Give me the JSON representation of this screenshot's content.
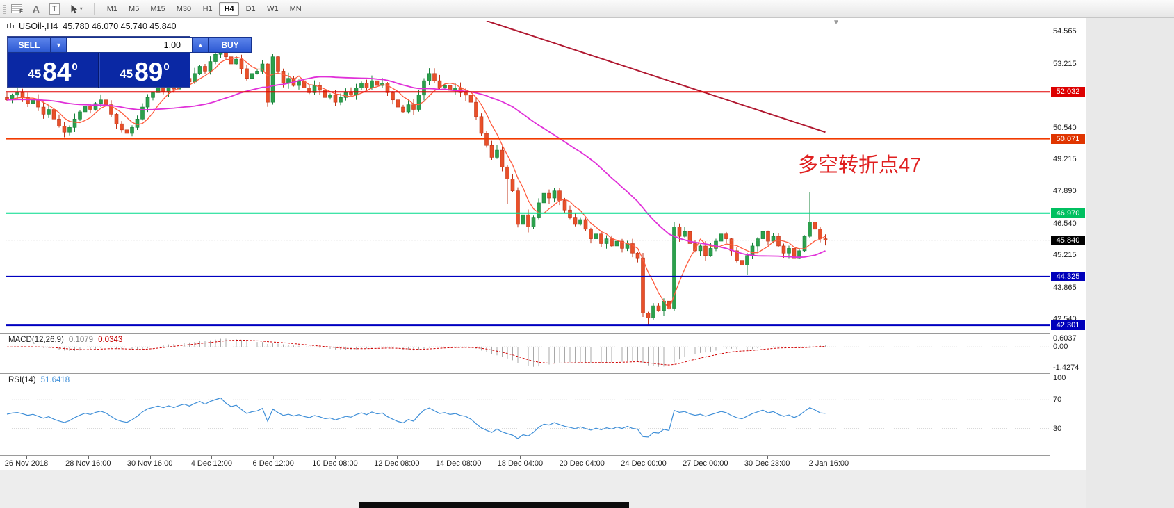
{
  "toolbar": {
    "tools": {
      "label_a": "A",
      "label_t": "T"
    },
    "timeframes": {
      "items": [
        "M1",
        "M5",
        "M15",
        "M30",
        "H1",
        "H4",
        "D1",
        "W1",
        "MN"
      ],
      "active": "H4"
    }
  },
  "chart": {
    "header": {
      "symbol": "USOil-,H4",
      "ohlc": "45.780 46.070 45.740 45.840"
    },
    "trade_panel": {
      "sell_label": "SELL",
      "buy_label": "BUY",
      "volume": "1.00",
      "sell_price": {
        "base": "45",
        "big": "84",
        "pip": "0"
      },
      "buy_price": {
        "base": "45",
        "big": "89",
        "pip": "0"
      }
    },
    "annotation": {
      "text": "多空转折点47",
      "color": "#e02020"
    },
    "current_price": {
      "label": "45.840"
    }
  },
  "price_axis": {
    "plain": [
      "54.565",
      "53.215",
      "50.540",
      "49.215",
      "47.890",
      "46.540",
      "45.215",
      "43.865",
      "42.540"
    ]
  },
  "indicators": {
    "macd": {
      "name": "MACD(12,26,9)",
      "main_value": "0.1079",
      "signal_value": "0.0343",
      "axis": [
        "0.6037",
        "0.00",
        "-1.4274"
      ],
      "fast": 12,
      "slow": 26,
      "signal": 9
    },
    "rsi": {
      "name": "RSI(14)",
      "value": "51.6418",
      "axis": [
        "100",
        "70",
        "30"
      ],
      "period": 14,
      "levels": [
        70,
        30
      ]
    }
  },
  "chart_data": {
    "type": "candlestick",
    "symbol": "USOil-",
    "timeframe": "H4",
    "price_range": [
      42.0,
      55.0
    ],
    "closes": [
      51.7,
      51.9,
      52.0,
      51.8,
      51.55,
      51.7,
      51.4,
      51.1,
      51.3,
      50.9,
      50.6,
      50.35,
      50.55,
      50.9,
      51.2,
      51.45,
      51.3,
      51.55,
      51.7,
      51.5,
      51.1,
      50.7,
      50.45,
      50.3,
      50.55,
      50.9,
      51.4,
      51.8,
      52.0,
      52.2,
      52.05,
      52.3,
      52.15,
      52.4,
      52.6,
      52.45,
      52.8,
      53.1,
      52.9,
      53.3,
      53.6,
      53.9,
      53.5,
      53.2,
      53.4,
      53.0,
      52.6,
      52.8,
      52.9,
      53.2,
      51.6,
      53.5,
      52.9,
      52.4,
      52.6,
      52.3,
      52.5,
      52.2,
      52.0,
      52.3,
      52.1,
      51.8,
      51.9,
      51.6,
      51.8,
      52.0,
      51.9,
      52.2,
      52.4,
      52.2,
      52.5,
      52.3,
      52.4,
      52.0,
      51.7,
      51.4,
      51.2,
      51.5,
      51.3,
      51.9,
      52.5,
      52.8,
      52.5,
      52.2,
      52.3,
      52.1,
      52.2,
      52.0,
      51.9,
      51.6,
      51.0,
      50.3,
      49.8,
      49.3,
      49.6,
      48.9,
      48.4,
      47.9,
      46.5,
      46.9,
      46.4,
      46.8,
      47.4,
      47.8,
      47.6,
      47.9,
      47.5,
      47.1,
      46.8,
      46.5,
      46.7,
      46.3,
      45.9,
      46.1,
      45.7,
      45.9,
      45.6,
      45.8,
      45.5,
      45.7,
      45.3,
      45.1,
      42.8,
      42.6,
      43.1,
      42.9,
      43.3,
      43.0,
      46.4,
      46.0,
      46.2,
      45.7,
      45.4,
      45.6,
      45.2,
      45.5,
      45.8,
      46.1,
      45.9,
      45.4,
      45.0,
      44.8,
      45.2,
      45.6,
      45.9,
      46.2,
      45.8,
      46.0,
      45.6,
      45.3,
      45.5,
      45.1,
      45.4,
      46.0,
      46.6,
      46.3,
      45.9,
      45.84
    ],
    "wick_overrides": {
      "23": {
        "low": 49.95
      },
      "41": {
        "high": 54.25
      },
      "96": {
        "low": 47.35
      },
      "123": {
        "low": 42.3
      },
      "137": {
        "high": 46.95
      },
      "142": {
        "low": 44.4
      },
      "154": {
        "high": 47.85
      }
    },
    "ma_fast_period": 6,
    "ma_slow_period": 34,
    "hlines": [
      {
        "price": 52.032,
        "label": "52.032",
        "color": "#e00000",
        "label_bg": "#dd0000",
        "width": 2
      },
      {
        "price": 50.071,
        "label": "50.071",
        "color": "#f23b00",
        "label_bg": "#e03500",
        "width": 1.6
      },
      {
        "price": 46.97,
        "label": "46.970",
        "color": "#00dc8c",
        "label_bg": "#00c060",
        "width": 2
      },
      {
        "price": 44.325,
        "label": "44.325",
        "color": "#0000c0",
        "label_bg": "#0000bb",
        "width": 2
      },
      {
        "price": 42.301,
        "label": "42.301",
        "color": "#0000c0",
        "label_bg": "#0000bb",
        "width": 3
      }
    ],
    "trendline": {
      "from_index": 92,
      "from_price": 55.0,
      "to_index": 157,
      "to_price": 50.35,
      "color": "#b01830"
    },
    "last_price": 45.84,
    "x_labels": [
      "26 Nov 2018",
      "28 Nov 16:00",
      "30 Nov 16:00",
      "4 Dec 12:00",
      "6 Dec 12:00",
      "10 Dec 08:00",
      "12 Dec 08:00",
      "14 Dec 08:00",
      "18 Dec 04:00",
      "20 Dec 04:00",
      "24 Dec 00:00",
      "27 Dec 00:00",
      "30 Dec 23:00",
      "2 Jan 16:00"
    ],
    "colors": {
      "up": "#2ca04c",
      "up_stroke": "#17803a",
      "down": "#e8502a",
      "down_stroke": "#c03418",
      "ma_fast": "#ff5a3c",
      "ma_slow": "#e030d8",
      "macd_hist": "#a8a8a8",
      "macd_signal": "#d00000",
      "rsi_line": "#3f8fd8",
      "price_line": "#b0b0b0"
    }
  }
}
